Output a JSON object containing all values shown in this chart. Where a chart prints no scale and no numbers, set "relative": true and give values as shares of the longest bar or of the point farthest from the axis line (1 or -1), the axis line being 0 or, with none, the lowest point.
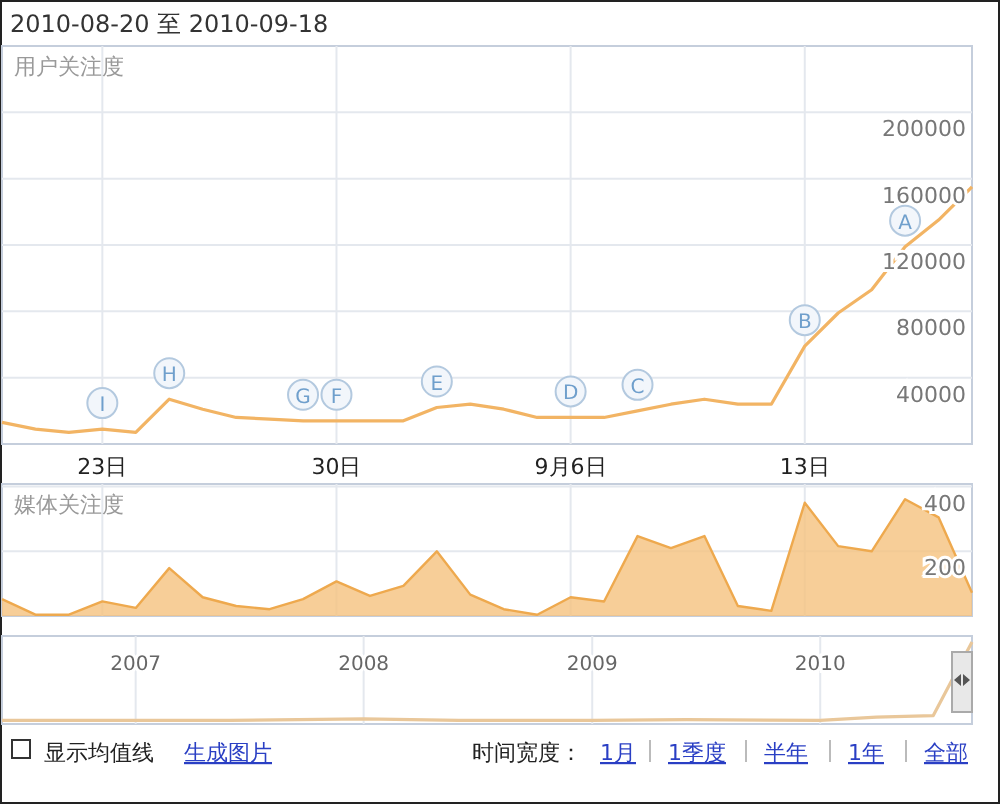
{
  "chart_data": [
    {
      "type": "line",
      "title": "2010-08-20 至 2010-09-18",
      "ylabel": "用户关注度",
      "color": "#f2b464",
      "x": [
        "2010-08-20",
        "2010-08-21",
        "2010-08-22",
        "2010-08-23",
        "2010-08-24",
        "2010-08-25",
        "2010-08-26",
        "2010-08-27",
        "2010-08-28",
        "2010-08-29",
        "2010-08-30",
        "2010-08-31",
        "2010-09-01",
        "2010-09-02",
        "2010-09-03",
        "2010-09-04",
        "2010-09-05",
        "2010-09-06",
        "2010-09-07",
        "2010-09-08",
        "2010-09-09",
        "2010-09-10",
        "2010-09-11",
        "2010-09-12",
        "2010-09-13",
        "2010-09-14",
        "2010-09-15",
        "2010-09-16",
        "2010-09-17",
        "2010-09-18"
      ],
      "values": [
        13000,
        9000,
        7000,
        9000,
        7000,
        27000,
        21000,
        16000,
        15000,
        14000,
        14000,
        14000,
        14000,
        22000,
        24000,
        21000,
        16000,
        16000,
        16000,
        20000,
        24000,
        27000,
        24000,
        24000,
        59000,
        79000,
        93000,
        119000,
        135000,
        155000
      ],
      "xlim": [
        "2010-08-20",
        "2010-09-18"
      ],
      "xticks": [
        {
          "value": "2010-08-23",
          "label": "23日"
        },
        {
          "value": "2010-08-30",
          "label": "30日"
        },
        {
          "value": "2010-09-06",
          "label": "9月6日"
        },
        {
          "value": "2010-09-13",
          "label": "13日"
        }
      ],
      "ylim": [
        0,
        240000
      ],
      "yticks": [
        40000,
        80000,
        120000,
        160000,
        200000
      ],
      "grid": true,
      "annotations": [
        {
          "text": "A",
          "x": "2010-09-16",
          "y": 119000
        },
        {
          "text": "B",
          "x": "2010-09-13",
          "y": 59000
        },
        {
          "text": "C",
          "x": "2010-09-08",
          "y": 20000
        },
        {
          "text": "D",
          "x": "2010-09-06",
          "y": 16000
        },
        {
          "text": "E",
          "x": "2010-09-02",
          "y": 22000
        },
        {
          "text": "F",
          "x": "2010-08-30",
          "y": 14000
        },
        {
          "text": "G",
          "x": "2010-08-29",
          "y": 14000
        },
        {
          "text": "H",
          "x": "2010-08-25",
          "y": 27000
        },
        {
          "text": "I",
          "x": "2010-08-23",
          "y": 9000
        }
      ]
    },
    {
      "type": "area",
      "ylabel": "媒体关注度",
      "color": "#f5c27e",
      "x": [
        "2010-08-20",
        "2010-08-21",
        "2010-08-22",
        "2010-08-23",
        "2010-08-24",
        "2010-08-25",
        "2010-08-26",
        "2010-08-27",
        "2010-08-28",
        "2010-08-29",
        "2010-08-30",
        "2010-08-31",
        "2010-09-01",
        "2010-09-02",
        "2010-09-03",
        "2010-09-04",
        "2010-09-05",
        "2010-09-06",
        "2010-09-07",
        "2010-09-08",
        "2010-09-09",
        "2010-09-10",
        "2010-09-11",
        "2010-09-12",
        "2010-09-13",
        "2010-09-14",
        "2010-09-15",
        "2010-09-16",
        "2010-09-17",
        "2010-09-18"
      ],
      "values": [
        52,
        4,
        4,
        45,
        25,
        148,
        58,
        31,
        21,
        52,
        107,
        62,
        93,
        200,
        66,
        21,
        4,
        58,
        45,
        247,
        210,
        247,
        31,
        16,
        350,
        216,
        200,
        361,
        305,
        72
      ],
      "xlim": [
        "2010-08-20",
        "2010-09-18"
      ],
      "xticks": [
        {
          "value": "2010-08-23",
          "label": null
        },
        {
          "value": "2010-08-30",
          "label": null
        },
        {
          "value": "2010-09-06",
          "label": null
        },
        {
          "value": "2010-09-13",
          "label": null
        }
      ],
      "ylim": [
        0,
        408
      ],
      "yticks": [
        200,
        400
      ],
      "grid": true,
      "tick_labels": "y"
    },
    {
      "type": "line",
      "relative": true,
      "color": "#e9c79a",
      "x": [
        "2006-06",
        "2007-01",
        "2007-06",
        "2008-01",
        "2008-06",
        "2009-01",
        "2009-06",
        "2010-01",
        "2010-04",
        "2010-07",
        "2010-09"
      ],
      "values": [
        0.02,
        0.02,
        0.02,
        0.04,
        0.02,
        0.02,
        0.03,
        0.02,
        0.06,
        0.08,
        1
      ],
      "xlim": [
        "2006-06",
        "2010-09"
      ],
      "xticks": [
        {
          "value": "2007-01",
          "label": "2007"
        },
        {
          "value": "2008-01",
          "label": "2008"
        },
        {
          "value": "2009-01",
          "label": "2009"
        },
        {
          "value": "2010-01",
          "label": "2010"
        }
      ],
      "grid": "x",
      "tick_labels": "x",
      "annotations": [
        "显示均值线",
        "生成图片",
        "时间宽度：",
        "1月",
        "1季度",
        "半年",
        "1年",
        "全部"
      ]
    }
  ]
}
